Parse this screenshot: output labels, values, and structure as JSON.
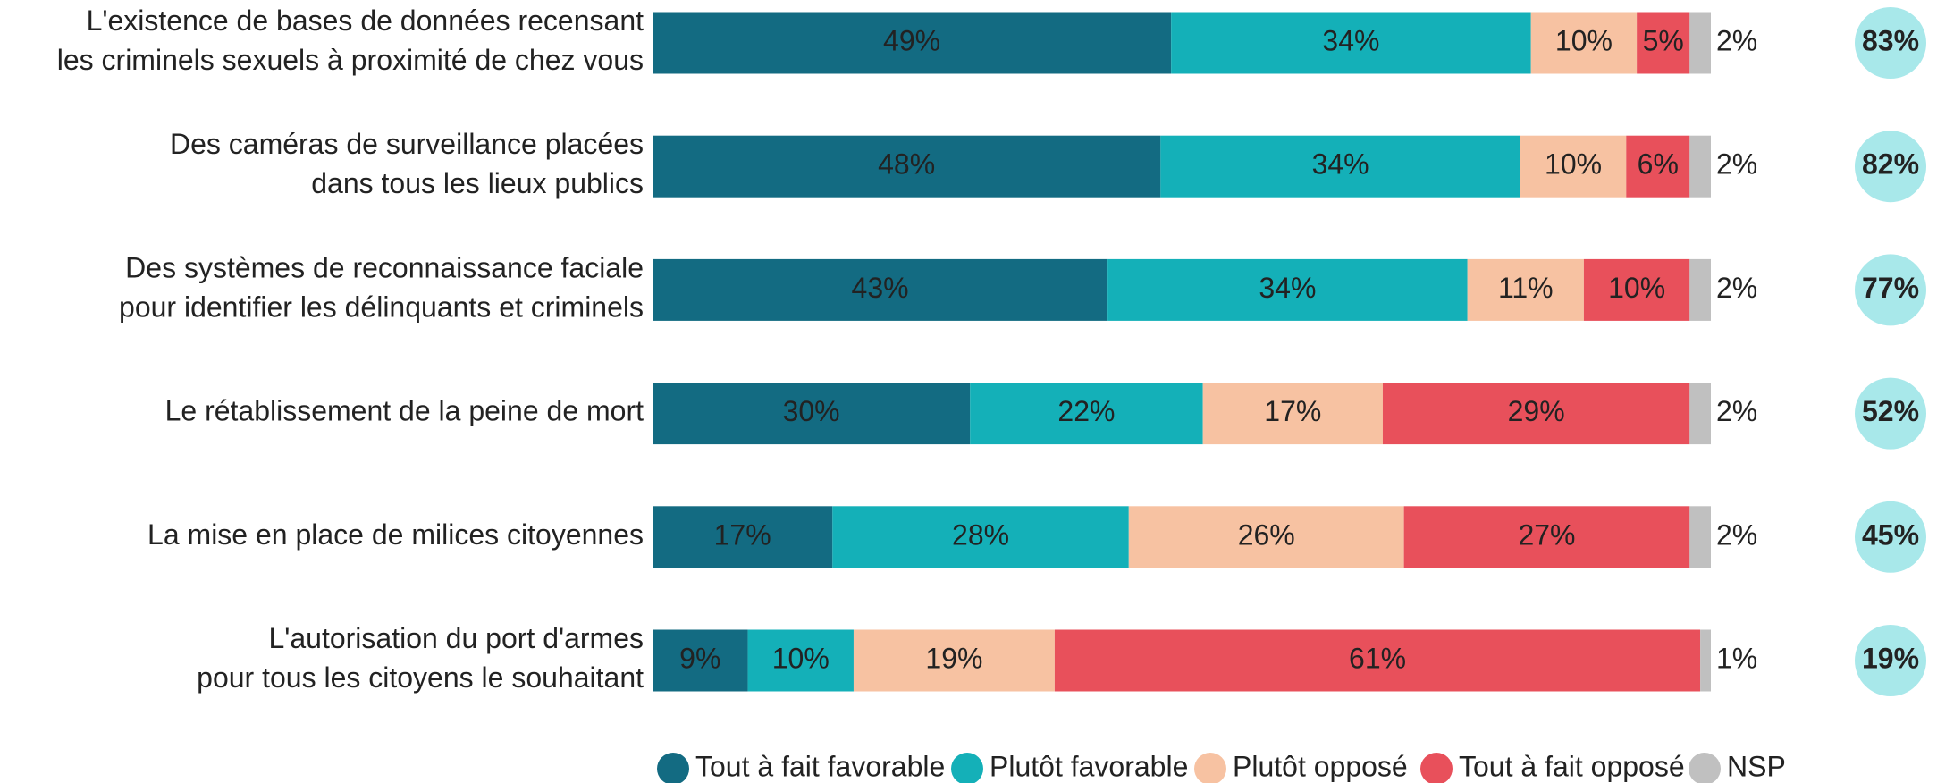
{
  "chart_data": {
    "type": "stacked-bar-horizontal",
    "categories": [
      "L'existence de bases de données recensant\nles criminels sexuels à proximité de chez vous",
      "Des caméras de surveillance placées\ndans tous les lieux publics",
      "Des systèmes de reconnaissance faciale\npour identifier les délinquants et criminels",
      "Le rétablissement de la peine de mort",
      "La mise en place de milices citoyennes",
      "L'autorisation du port d'armes\npour tous les citoyens le souhaitant"
    ],
    "xlim": [
      0,
      100
    ],
    "legend": "bottom",
    "series": [
      {
        "name": "Tout à fait favorable",
        "color": "#136b82",
        "values": [
          49,
          48,
          43,
          30,
          17,
          9
        ],
        "value_labels": [
          "49%",
          "48%",
          "43%",
          "30%",
          "17%",
          "9%"
        ]
      },
      {
        "name": "Plutôt favorable",
        "color": "#14b0b8",
        "values": [
          34,
          34,
          34,
          22,
          28,
          10
        ],
        "value_labels": [
          "34%",
          "34%",
          "34%",
          "22%",
          "28%",
          "10%"
        ]
      },
      {
        "name": "Plutôt opposé",
        "color": "#f7c2a2",
        "values": [
          10,
          10,
          11,
          17,
          26,
          19
        ],
        "value_labels": [
          "10%",
          "10%",
          "11%",
          "17%",
          "26%",
          "19%"
        ]
      },
      {
        "name": "Tout à fait opposé",
        "color": "#e8505b",
        "values": [
          5,
          6,
          10,
          29,
          27,
          61
        ],
        "value_labels": [
          "5%",
          "6%",
          "10%",
          "29%",
          "27%",
          "61%"
        ]
      },
      {
        "name": "NSP",
        "color": "#c0c0c0",
        "values": [
          2,
          2,
          2,
          2,
          2,
          1
        ],
        "value_labels": [
          "2%",
          "2%",
          "2%",
          "2%",
          "2%",
          "1%"
        ]
      }
    ],
    "totals": {
      "color": "#a8e8ea",
      "values": [
        83,
        82,
        77,
        52,
        45,
        19
      ],
      "value_labels": [
        "83%",
        "82%",
        "77%",
        "52%",
        "45%",
        "19%"
      ]
    }
  }
}
